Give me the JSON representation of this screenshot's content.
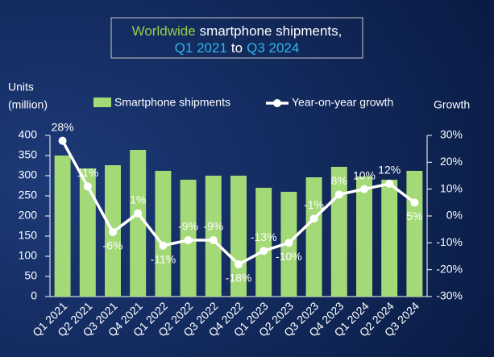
{
  "chart_data": {
    "type": "bar-line",
    "title_parts": [
      {
        "text": "Worldwide",
        "color": "#92d050"
      },
      {
        "text": "smartphone shipments,",
        "color": "#ffffff"
      },
      {
        "text": "Q1 2021",
        "color": "#2fb5e8"
      },
      {
        "text": "to",
        "color": "#ffffff"
      },
      {
        "text": "Q3 2024",
        "color": "#2fb5e8"
      }
    ],
    "ylabel": [
      "Units",
      "(million)"
    ],
    "y2label": "Growth",
    "categories": [
      "Q1 2021",
      "Q2 2021",
      "Q3 2021",
      "Q4 2021",
      "Q1 2022",
      "Q2 2022",
      "Q3 2022",
      "Q4 2022",
      "Q1 2023",
      "Q2 2023",
      "Q3 2023",
      "Q4 2023",
      "Q1 2024",
      "Q2 2024",
      "Q3 2024"
    ],
    "series": [
      {
        "name": "Smartphone shipments",
        "color": "#a3d977",
        "type": "bar",
        "values": [
          350,
          318,
          326,
          364,
          312,
          290,
          300,
          300,
          270,
          260,
          296,
          322,
          298,
          290,
          312
        ]
      },
      {
        "name": "Year-on-year growth",
        "color": "#ffffff",
        "type": "line",
        "axis": "y2",
        "values": [
          28,
          11,
          -6,
          1,
          -11,
          -9,
          -9,
          -18,
          -13,
          -10,
          -1,
          8,
          10,
          12,
          5
        ],
        "value_labels": [
          "28%",
          "11%",
          "-6%",
          "1%",
          "-11%",
          "-9%",
          "-9%",
          "-18%",
          "-13%",
          "-10%",
          "-1%",
          "8%",
          "10%",
          "12%",
          "5%"
        ]
      }
    ],
    "ylim": [
      0,
      400
    ],
    "yticks": [
      0,
      50,
      100,
      150,
      200,
      250,
      300,
      350,
      400
    ],
    "y2lim": [
      -30,
      30
    ],
    "y2ticks": [
      {
        "value": -30,
        "label": "-30%"
      },
      {
        "value": -20,
        "label": "-20%"
      },
      {
        "value": -10,
        "label": "-10%"
      },
      {
        "value": 0,
        "label": "0%"
      },
      {
        "value": 10,
        "label": "10%"
      },
      {
        "value": 20,
        "label": "20%"
      },
      {
        "value": 30,
        "label": "30%"
      }
    ]
  }
}
